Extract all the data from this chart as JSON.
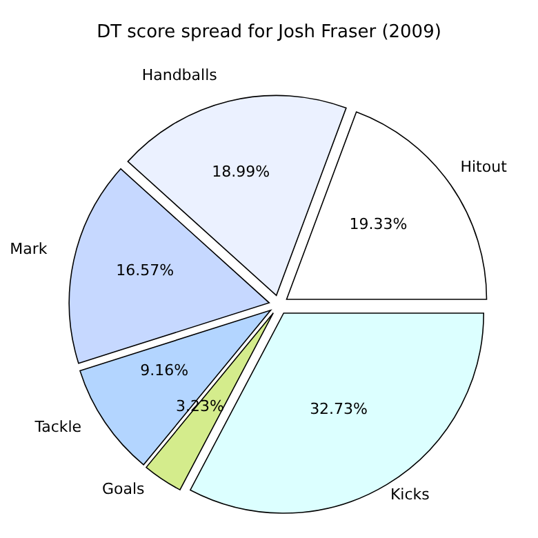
{
  "chart_data": {
    "type": "pie",
    "title": "DT score spread for Josh Fraser (2009)",
    "categories": [
      "Hitout",
      "Handballs",
      "Mark",
      "Tackle",
      "Goals",
      "Kicks"
    ],
    "values": [
      19.33,
      18.99,
      16.57,
      9.16,
      3.23,
      32.73
    ],
    "value_labels": [
      "19.33%",
      "18.99%",
      "16.57%",
      "9.16%",
      "3.23%",
      "32.73%"
    ],
    "colors": [
      "#ffffff",
      "#ebf1ff",
      "#c6d8ff",
      "#b3d5ff",
      "#d4ec8c",
      "#dcffff"
    ],
    "legend": false
  }
}
